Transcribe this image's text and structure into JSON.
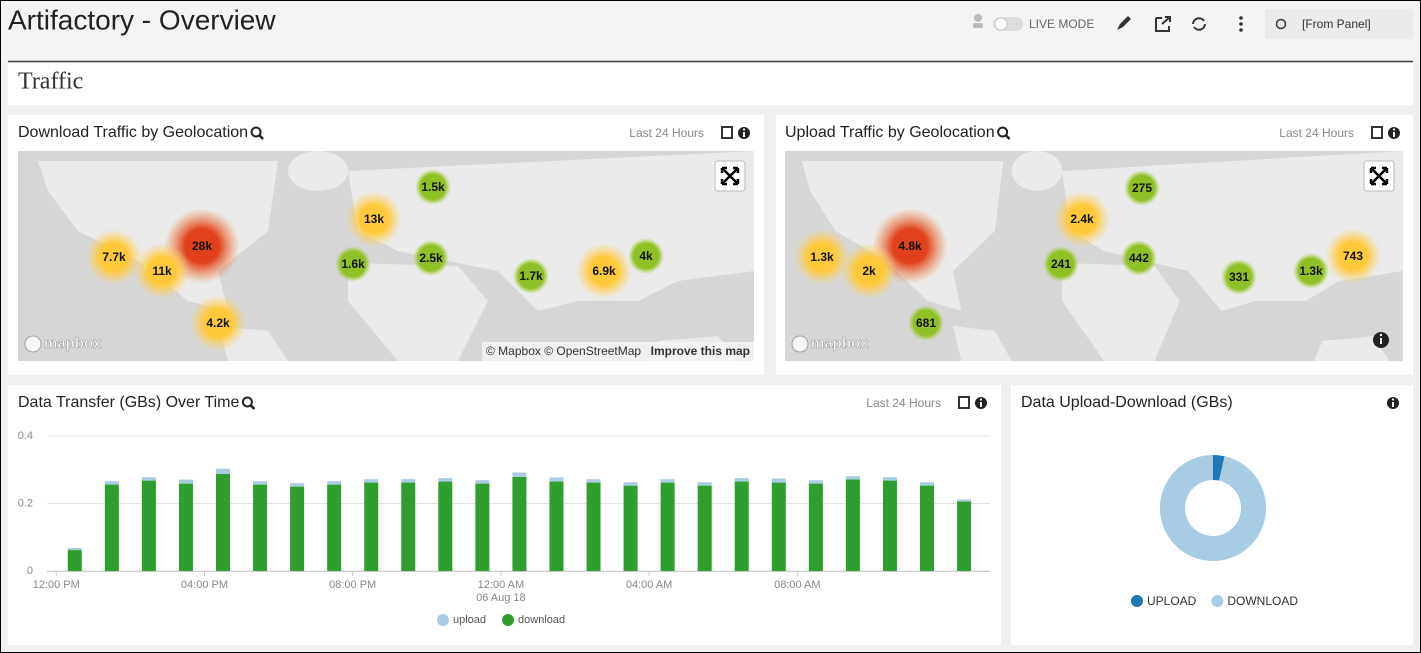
{
  "header": {
    "title": "Artifactory - Overview",
    "live_mode": "LIVE MODE",
    "time_range": "[From Panel]"
  },
  "section": {
    "title": "Traffic"
  },
  "panels": [
    {
      "title": "Download Traffic by Geolocation",
      "time_range": "Last 24 Hours",
      "clusters": [
        "28k",
        "7.7k",
        "11k",
        "4.2k",
        "13k",
        "1.5k",
        "1.6k",
        "2.5k",
        "1.7k",
        "6.9k",
        "4k"
      ],
      "logo": "mapbox",
      "attribution": "© Mapbox © OpenStreetMap",
      "improve": "Improve this map"
    },
    {
      "title": "Upload Traffic by Geolocation",
      "time_range": "Last 24 Hours",
      "clusters": [
        "4.8k",
        "1.3k",
        "2k",
        "2.4k",
        "275",
        "241",
        "442",
        "681",
        "331",
        "1.3k",
        "743"
      ],
      "logo": "mapbox"
    }
  ],
  "chart_data": [
    {
      "type": "bar",
      "stacked": true,
      "title": "Data Transfer (GBs) Over Time",
      "time_range": "Last 24 Hours",
      "x": [
        0.5,
        1.5,
        2.5,
        3.5,
        4.5,
        5.5,
        6.5,
        7.5,
        8.5,
        9.5,
        10.5,
        11.5,
        12.5,
        13.5,
        14.5,
        15.5,
        16.5,
        17.5,
        18.5,
        19.5,
        20.5,
        21.5,
        22.5,
        23.5,
        24.5
      ],
      "series": [
        {
          "name": "upload",
          "color": "#a8cce2",
          "values": [
            0.006,
            0.01,
            0.01,
            0.012,
            0.015,
            0.01,
            0.01,
            0.01,
            0.01,
            0.01,
            0.01,
            0.01,
            0.013,
            0.012,
            0.01,
            0.01,
            0.01,
            0.01,
            0.01,
            0.012,
            0.01,
            0.01,
            0.01,
            0.01,
            0.006
          ]
        },
        {
          "name": "download",
          "color": "#2e9e2e",
          "values": [
            0.062,
            0.256,
            0.268,
            0.259,
            0.288,
            0.256,
            0.25,
            0.256,
            0.262,
            0.262,
            0.265,
            0.259,
            0.279,
            0.265,
            0.262,
            0.253,
            0.262,
            0.253,
            0.265,
            0.262,
            0.259,
            0.271,
            0.268,
            0.253,
            0.206
          ]
        }
      ],
      "xlim": [
        -0.25,
        25.2
      ],
      "xticks": [
        {
          "value": 0,
          "label": "12:00 PM"
        },
        {
          "value": 4,
          "label": "04:00 PM"
        },
        {
          "value": 8,
          "label": "08:00 PM"
        },
        {
          "value": 12,
          "label": "12:00 AM",
          "date": "06 Aug 18"
        },
        {
          "value": 16,
          "label": "04:00 AM"
        },
        {
          "value": 20,
          "label": "08:00 AM"
        }
      ],
      "ylim": [
        0,
        0.4
      ],
      "yticks": [
        0,
        0.2,
        0.4
      ],
      "grid": true
    },
    {
      "type": "pie",
      "title": "Data Upload-Download (GBs)",
      "categories": [
        "UPLOAD",
        "DOWNLOAD"
      ],
      "values": [
        3.5,
        96.5
      ],
      "colors": [
        "#1f77b4",
        "#a8cce2"
      ],
      "donut": true
    }
  ]
}
